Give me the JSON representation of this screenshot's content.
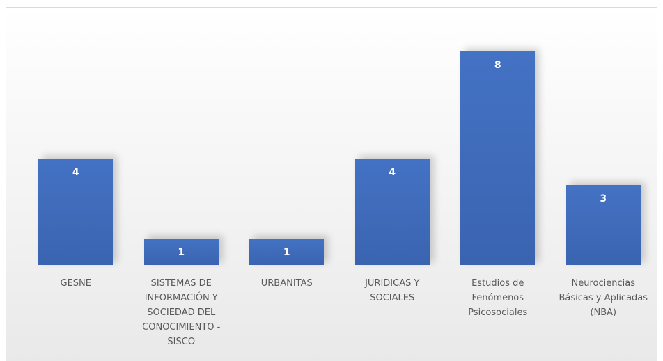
{
  "chart_data": {
    "type": "bar",
    "categories": [
      "GESNE",
      "SISTEMAS DE INFORMACIÓN Y SOCIEDAD DEL CONOCIMIENTO - SISCO",
      "URBANITAS",
      "JURIDICAS Y SOCIALES",
      "Estudios de Fenómenos Psicosociales",
      "Neurociencias Básicas y Aplicadas (NBA)"
    ],
    "values": [
      4,
      1,
      1,
      4,
      8,
      3
    ],
    "color": "#4472c4"
  }
}
